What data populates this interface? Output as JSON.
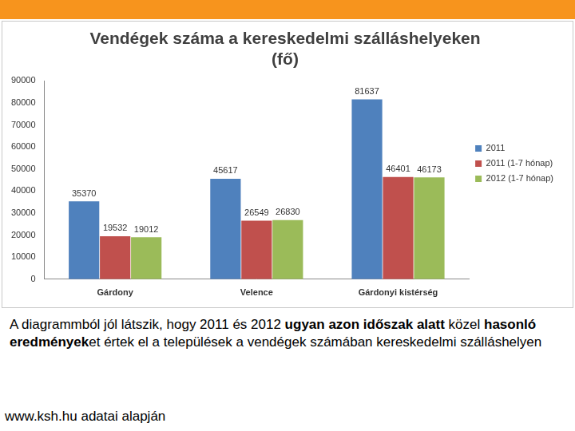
{
  "chart_data": {
    "type": "bar",
    "title": [
      "Vendégek száma a kereskedelmi szálláshelyeken",
      "(fő)"
    ],
    "categories": [
      "Gárdony",
      "Velence",
      "Gárdonyi kistérség"
    ],
    "series": [
      {
        "name": "2011",
        "color": "#4f81bd",
        "values": [
          35370,
          45617,
          81637
        ]
      },
      {
        "name": "2011 (1-7 hónap)",
        "color": "#c0504d",
        "values": [
          19532,
          26549,
          46401
        ]
      },
      {
        "name": "2012 (1-7 hónap)",
        "color": "#9bbb59",
        "values": [
          19012,
          26830,
          46173
        ]
      }
    ],
    "ylim": [
      0,
      90000
    ],
    "yticks": [
      0,
      10000,
      20000,
      30000,
      40000,
      50000,
      60000,
      70000,
      80000,
      90000
    ],
    "grid": false,
    "legend": "right",
    "data_labels": true
  },
  "caption": [
    {
      "text": "A diagrammból jól látszik, hogy 2011 és 2012 ",
      "bold": false
    },
    {
      "text": "ugyan azon időszak alatt",
      "bold": true
    },
    {
      "text": " közel ",
      "bold": false
    },
    {
      "text": "hasonló eredmények",
      "bold": true
    },
    {
      "text": "et értek el a települések a vendégek számában kereskedelmi szálláshelyen",
      "bold": false
    }
  ],
  "source": "www.ksh.hu adatai alapján"
}
